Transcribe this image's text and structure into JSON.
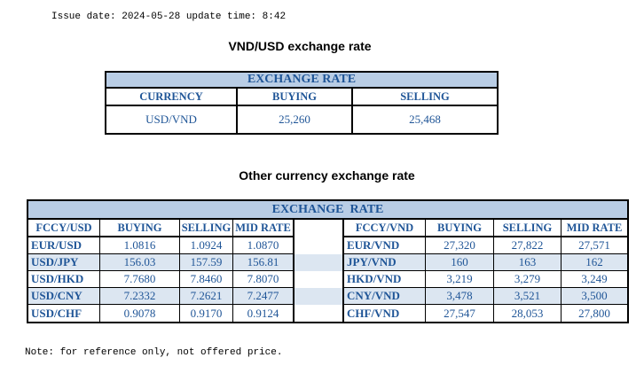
{
  "meta": {
    "issue_line": "Issue date: 2024-05-28 update time: 8:42",
    "note_line": "Note: for reference only, not offered price."
  },
  "colors": {
    "band_blue": "#B9CDE5",
    "stripe_blue": "#DCE6F1",
    "text_blue": "#1F5597",
    "border_black": "#000000"
  },
  "usd_table": {
    "title": "VND/USD exchange rate",
    "band_label": "EXCHANGE RATE",
    "headers": [
      "CURRENCY",
      "BUYING",
      "SELLING"
    ],
    "row": {
      "currency": "USD/VND",
      "buying": "25,260",
      "selling": "25,468"
    }
  },
  "other_table": {
    "title": "Other currency exchange rate",
    "band_label": "EXCHANGE  RATE",
    "left_headers": [
      "FCCY/USD",
      "BUYING",
      "SELLING",
      "MID RATE"
    ],
    "right_headers": [
      "FCCY/VND",
      "BUYING",
      "SELLING",
      "MID RATE"
    ],
    "rows": [
      {
        "l_pair": "EUR/USD",
        "l_buy": "1.0816",
        "l_sell": "1.0924",
        "l_mid": "1.0870",
        "r_pair": "EUR/VND",
        "r_buy": "27,320",
        "r_sell": "27,822",
        "r_mid": "27,571"
      },
      {
        "l_pair": "USD/JPY",
        "l_buy": "156.03",
        "l_sell": "157.59",
        "l_mid": "156.81",
        "r_pair": "JPY/VND",
        "r_buy": "160",
        "r_sell": "163",
        "r_mid": "162"
      },
      {
        "l_pair": "USD/HKD",
        "l_buy": "7.7680",
        "l_sell": "7.8460",
        "l_mid": "7.8070",
        "r_pair": "HKD/VND",
        "r_buy": "3,219",
        "r_sell": "3,279",
        "r_mid": "3,249"
      },
      {
        "l_pair": "USD/CNY",
        "l_buy": "7.2332",
        "l_sell": "7.2621",
        "l_mid": "7.2477",
        "r_pair": "CNY/VND",
        "r_buy": "3,478",
        "r_sell": "3,521",
        "r_mid": "3,500"
      },
      {
        "l_pair": "USD/CHF",
        "l_buy": "0.9078",
        "l_sell": "0.9170",
        "l_mid": "0.9124",
        "r_pair": "CHF/VND",
        "r_buy": "27,547",
        "r_sell": "28,053",
        "r_mid": "27,800"
      }
    ]
  }
}
